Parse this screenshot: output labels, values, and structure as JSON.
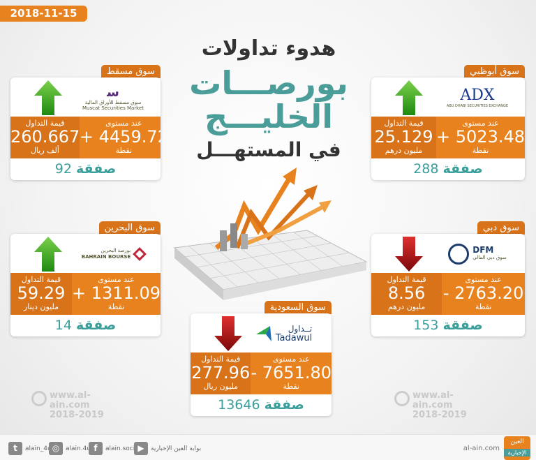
{
  "date": "2018-11-15",
  "title": {
    "line1": "هدوء تداولات",
    "line2": "بورصـــات",
    "line3": "الخليـــج",
    "line4": "في المستهـــل"
  },
  "labels": {
    "level": "عند مستوى",
    "trade_value": "قيمة التداول",
    "points": "نقطة",
    "deals": "صفقة"
  },
  "markets": {
    "muscat": {
      "name": "سوق مسقط",
      "logo_ar": "سوق مسقط للأوراق المالية",
      "logo_en": "Muscat Securities Market",
      "direction": "up",
      "level": "+ 4459.72",
      "trade_value": "260.667",
      "unit": "ألف ريال",
      "deals": "92"
    },
    "adx": {
      "name": "سوق أبوظبي",
      "logo_en": "ADX",
      "logo_sub": "ABU DHABI SECURITIES EXCHANGE",
      "direction": "up",
      "level": "+ 5023.48",
      "trade_value": "25.129",
      "unit": "مليون درهم",
      "deals": "288"
    },
    "bahrain": {
      "name": "سوق البحرين",
      "logo_ar": "بورصة البحرين",
      "logo_en": "BAHRAIN BOURSE",
      "direction": "up",
      "level": "+ 1311.09",
      "trade_value": "59.29",
      "unit": "مليون دينار",
      "deals": "14"
    },
    "dubai": {
      "name": "سوق دبي",
      "logo_en": "DFM",
      "logo_ar": "سوق دبي المالي",
      "direction": "down",
      "level": "- 2763.20",
      "trade_value": "8.56",
      "unit": "مليون درهم",
      "deals": "153"
    },
    "saudi": {
      "name": "سوق السعودية",
      "logo_ar": "تــداول",
      "logo_en": "Tadawul",
      "direction": "down",
      "level": "- 7651.80",
      "trade_value": "277.96",
      "unit": "مليون ريال",
      "deals": "13646"
    }
  },
  "watermark": {
    "site": "www.al-ain.com",
    "years": "2018-2019"
  },
  "footer": {
    "twitter": "alain_4u",
    "instagram": "alain.4u",
    "facebook": "alain.social",
    "youtube": "بوابة العين الإخبارية",
    "site": "al-ain.com",
    "brand": "العين",
    "brand_sub": "الإخبارية"
  },
  "colors": {
    "orange": "#e8821e",
    "dark_orange": "#d9731a",
    "teal": "#4a9d98",
    "up": "#2e9e1f",
    "down": "#b01010"
  }
}
